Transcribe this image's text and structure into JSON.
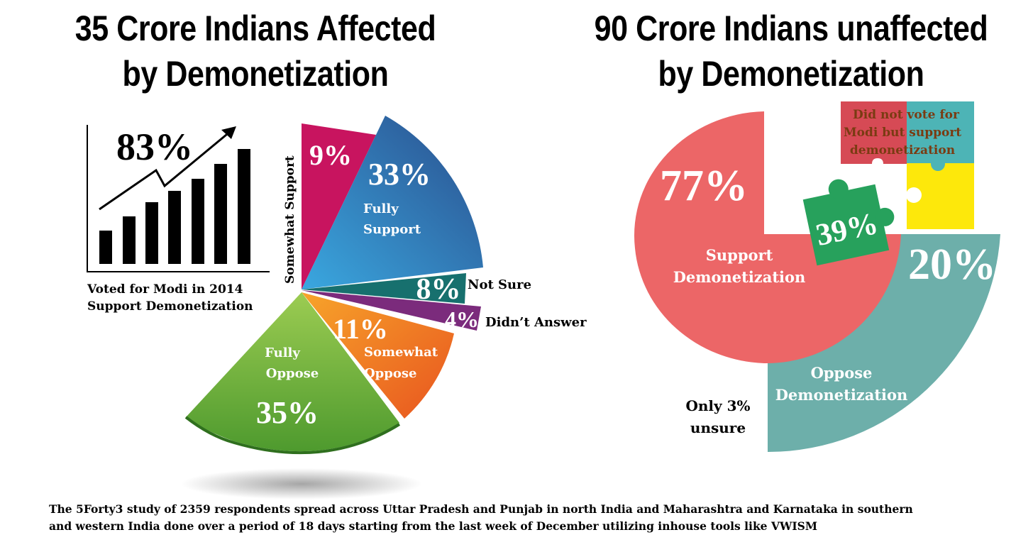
{
  "titles": {
    "left_line1": "35 Crore Indians Affected",
    "left_line2": "by Demonetization",
    "right_line1": "90 Crore Indians unaffected",
    "right_line2": "by Demonetization"
  },
  "growth_chart": {
    "headline": "83%",
    "caption_line1": "Voted for Modi in 2014",
    "caption_line2": "Support Demonetization"
  },
  "footer": {
    "line1": "The 5Forty3 study of 2359 respondents spread across Uttar Pradesh and Punjab in north India and Maharashtra and Karnataka in southern",
    "line2": "and western India done over a period of 18 days starting from the last week of December utilizing inhouse tools like VWISM"
  },
  "chart_data": [
    {
      "type": "pie",
      "title": "35 Crore Indians Affected by Demonetization",
      "slices": [
        {
          "label": "Somewhat Support",
          "value": 9,
          "value_label": "9%",
          "color": "#c8145f"
        },
        {
          "label": "Fully Support",
          "value": 33,
          "value_label": "33%",
          "label_lines": [
            "Fully",
            "Support"
          ],
          "color": "#2a5a9c"
        },
        {
          "label": "Not Sure",
          "value": 8,
          "value_label": "8%",
          "color": "#17706e"
        },
        {
          "label": "Didn't Answer",
          "value": 4,
          "value_label": "4%",
          "display_label": "Didn’t Answer",
          "color": "#7b2b7c"
        },
        {
          "label": "Somewhat Oppose",
          "value": 11,
          "value_label": "11%",
          "label_lines": [
            "Somewhat",
            "Oppose"
          ],
          "color": "#ef6e24"
        },
        {
          "label": "Fully Oppose",
          "value": 35,
          "value_label": "35%",
          "label_lines": [
            "Fully",
            "Oppose"
          ],
          "color": "#6ea83a"
        }
      ]
    },
    {
      "type": "pie",
      "title": "90 Crore Indians unaffected by Demonetization",
      "slices": [
        {
          "label": "Support Demonetization",
          "value": 77,
          "value_label": "77%",
          "label_lines": [
            "Support",
            "Demonetization"
          ],
          "color": "#ec6667"
        },
        {
          "label": "Oppose Demonetization",
          "value": 20,
          "value_label": "20%",
          "label_lines": [
            "Oppose",
            "Demonetization"
          ],
          "color": "#6dafaa"
        },
        {
          "label": "Only 3% unsure",
          "value": 3,
          "label_lines": [
            "Only 3%",
            "unsure"
          ]
        }
      ],
      "puzzle": {
        "value_label": "39%",
        "text_lines": [
          "Did not vote for",
          "Modi but support",
          "demonetization"
        ],
        "colors": [
          "#d64a55",
          "#4db4b6",
          "#fde80b",
          "#27a15c"
        ]
      }
    }
  ],
  "colors": {
    "pie_highlight_blue": "#3aa8e0",
    "puzzle_text": "#7a3b12"
  }
}
